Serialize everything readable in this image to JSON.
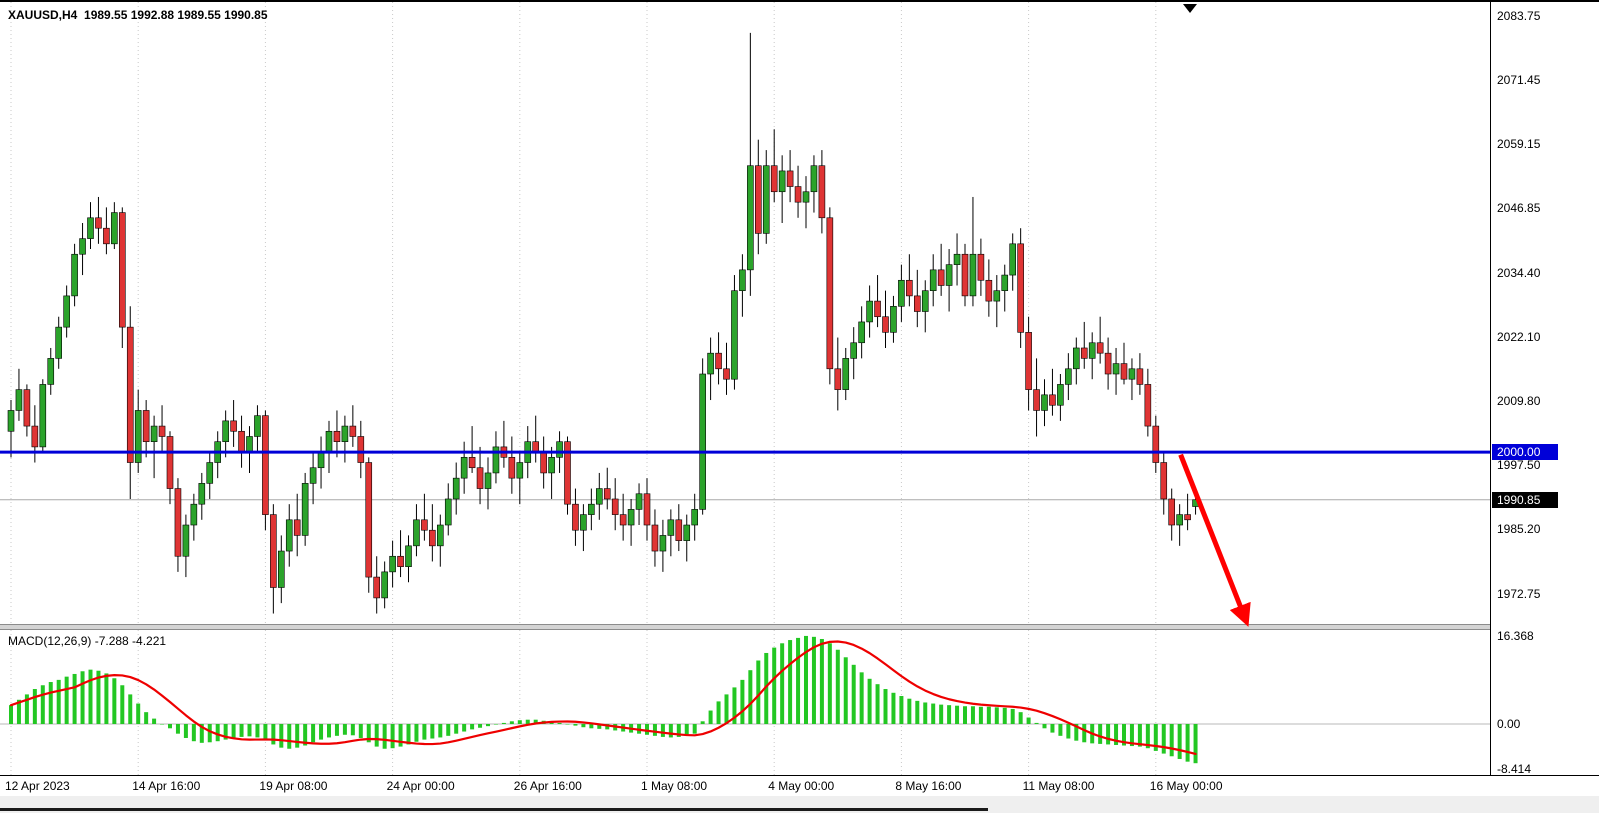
{
  "header": {
    "symbol_info": "XAUUSD,H4  1989.55 1992.88 1989.55 1990.85"
  },
  "indicator": {
    "label": "MACD(12,26,9) -7.288 -4.221"
  },
  "price_axis": {
    "ticks": [
      {
        "label": "2083.75",
        "value": 2083.75
      },
      {
        "label": "2071.45",
        "value": 2071.45
      },
      {
        "label": "2059.15",
        "value": 2059.15
      },
      {
        "label": "2046.85",
        "value": 2046.85
      },
      {
        "label": "2034.40",
        "value": 2034.4
      },
      {
        "label": "2022.10",
        "value": 2022.1
      },
      {
        "label": "2009.80",
        "value": 2009.8
      },
      {
        "label": "1997.50",
        "value": 1997.5
      },
      {
        "label": "1985.20",
        "value": 1985.2
      },
      {
        "label": "1972.75",
        "value": 1972.75
      }
    ],
    "line_label": {
      "label": "2000.00",
      "value": 2000.0
    },
    "current_label": {
      "label": "1990.85",
      "value": 1990.85
    }
  },
  "time_axis": {
    "ticks": [
      {
        "label": "12 Apr 2023",
        "bar": 0
      },
      {
        "label": "14 Apr 16:00",
        "bar": 16
      },
      {
        "label": "19 Apr 08:00",
        "bar": 32
      },
      {
        "label": "24 Apr 00:00",
        "bar": 48
      },
      {
        "label": "26 Apr 16:00",
        "bar": 64
      },
      {
        "label": "1 May 08:00",
        "bar": 80
      },
      {
        "label": "4 May 00:00",
        "bar": 96
      },
      {
        "label": "8 May 16:00",
        "bar": 112
      },
      {
        "label": "11 May 08:00",
        "bar": 128
      },
      {
        "label": "16 May 00:00",
        "bar": 144
      }
    ]
  },
  "macd_axis": {
    "ticks": [
      {
        "label": "16.368",
        "value": 16.368
      },
      {
        "label": "0.00",
        "value": 0
      },
      {
        "label": "-8.414",
        "value": -8.414
      }
    ]
  },
  "colors": {
    "bull": "#2BA32B",
    "bear": "#DF3434",
    "wick": "#000000",
    "histogram": "#23C723",
    "signal": "#EE0000",
    "hline": "#0000D8",
    "grid": "#C9C9C9",
    "arrow": "#FF0000",
    "current_line": "#A8A8A8",
    "hline_label_bg": "#0000D8",
    "current_label_bg": "#000000"
  },
  "chart_data": {
    "type": "candlestick",
    "title": "XAUUSD H4 with MACD(12,26,9)",
    "symbol": "XAUUSD",
    "timeframe": "H4",
    "main_ylim": [
      1966.99,
      2086.44
    ],
    "macd_ylim": [
      -9.48,
      17.47
    ],
    "horizontal_line_price": 2000.0,
    "current_price": 1990.85,
    "macd_signal_period": 9,
    "ohlc": [
      [
        2004,
        2010,
        1999,
        2008
      ],
      [
        2008,
        2016,
        2006,
        2012
      ],
      [
        2012,
        2013,
        2003,
        2005
      ],
      [
        2005,
        2009,
        1998,
        2001
      ],
      [
        2001,
        2014,
        2000,
        2013
      ],
      [
        2013,
        2020,
        2011,
        2018
      ],
      [
        2018,
        2026,
        2016,
        2024
      ],
      [
        2024,
        2032,
        2022,
        2030
      ],
      [
        2030,
        2040,
        2028,
        2038
      ],
      [
        2038,
        2044,
        2034,
        2041
      ],
      [
        2041,
        2048,
        2039,
        2045
      ],
      [
        2045,
        2049,
        2040,
        2043
      ],
      [
        2043,
        2047,
        2038,
        2040
      ],
      [
        2040,
        2048,
        2039,
        2046
      ],
      [
        2046,
        2047,
        2020,
        2024
      ],
      [
        2024,
        2028,
        1991,
        1998
      ],
      [
        1998,
        2012,
        1996,
        2008
      ],
      [
        2008,
        2010,
        1999,
        2002
      ],
      [
        2002,
        2007,
        1995,
        2005
      ],
      [
        2005,
        2009,
        2000,
        2003
      ],
      [
        2003,
        2004,
        1990,
        1993
      ],
      [
        1993,
        1995,
        1977,
        1980
      ],
      [
        1980,
        1988,
        1976,
        1986
      ],
      [
        1986,
        1992,
        1983,
        1990
      ],
      [
        1990,
        1996,
        1987,
        1994
      ],
      [
        1994,
        2000,
        1991,
        1998
      ],
      [
        1998,
        2004,
        1995,
        2002
      ],
      [
        2002,
        2008,
        1999,
        2006
      ],
      [
        2006,
        2010,
        2001,
        2004
      ],
      [
        2004,
        2007,
        1997,
        2000
      ],
      [
        2000,
        2005,
        1996,
        2003
      ],
      [
        2003,
        2009,
        2000,
        2007
      ],
      [
        2007,
        2008,
        1985,
        1988
      ],
      [
        1988,
        1990,
        1969,
        1974
      ],
      [
        1974,
        1984,
        1971,
        1981
      ],
      [
        1981,
        1990,
        1978,
        1987
      ],
      [
        1987,
        1992,
        1980,
        1984
      ],
      [
        1984,
        1996,
        1982,
        1994
      ],
      [
        1994,
        2000,
        1990,
        1997
      ],
      [
        1997,
        2003,
        1993,
        2000
      ],
      [
        2000,
        2006,
        1996,
        2004
      ],
      [
        2004,
        2008,
        1999,
        2002
      ],
      [
        2002,
        2007,
        1998,
        2005
      ],
      [
        2005,
        2009,
        2001,
        2003
      ],
      [
        2003,
        2006,
        1995,
        1998
      ],
      [
        1998,
        1999,
        1973,
        1976
      ],
      [
        1976,
        1980,
        1969,
        1972
      ],
      [
        1972,
        1979,
        1970,
        1977
      ],
      [
        1977,
        1983,
        1974,
        1980
      ],
      [
        1980,
        1985,
        1976,
        1978
      ],
      [
        1978,
        1984,
        1975,
        1982
      ],
      [
        1982,
        1990,
        1980,
        1987
      ],
      [
        1987,
        1992,
        1983,
        1985
      ],
      [
        1985,
        1990,
        1979,
        1982
      ],
      [
        1982,
        1988,
        1978,
        1986
      ],
      [
        1986,
        1994,
        1984,
        1991
      ],
      [
        1991,
        1998,
        1988,
        1995
      ],
      [
        1995,
        2002,
        1992,
        1999
      ],
      [
        1999,
        2005,
        1996,
        1997
      ],
      [
        1997,
        2001,
        1990,
        1993
      ],
      [
        1993,
        1999,
        1989,
        1996
      ],
      [
        1996,
        2004,
        1994,
        2001
      ],
      [
        2001,
        2006,
        1997,
        1999
      ],
      [
        1999,
        2003,
        1992,
        1995
      ],
      [
        1995,
        2000,
        1990,
        1998
      ],
      [
        1998,
        2005,
        1995,
        2002
      ],
      [
        2002,
        2007,
        1998,
        2000
      ],
      [
        2000,
        2003,
        1993,
        1996
      ],
      [
        1996,
        2001,
        1991,
        1999
      ],
      [
        1999,
        2004,
        1996,
        2002
      ],
      [
        2002,
        2003,
        1988,
        1990
      ],
      [
        1990,
        1993,
        1982,
        1985
      ],
      [
        1985,
        1990,
        1981,
        1988
      ],
      [
        1988,
        1993,
        1985,
        1990
      ],
      [
        1990,
        1996,
        1987,
        1993
      ],
      [
        1993,
        1997,
        1989,
        1991
      ],
      [
        1991,
        1995,
        1985,
        1988
      ],
      [
        1988,
        1992,
        1983,
        1986
      ],
      [
        1986,
        1991,
        1982,
        1989
      ],
      [
        1989,
        1994,
        1986,
        1992
      ],
      [
        1992,
        1995,
        1983,
        1986
      ],
      [
        1986,
        1989,
        1978,
        1981
      ],
      [
        1981,
        1987,
        1977,
        1984
      ],
      [
        1984,
        1989,
        1980,
        1987
      ],
      [
        1987,
        1990,
        1981,
        1983
      ],
      [
        1983,
        1988,
        1979,
        1986
      ],
      [
        1986,
        1992,
        1983,
        1989
      ],
      [
        1989,
        2018,
        1988,
        2015
      ],
      [
        2015,
        2022,
        2010,
        2019
      ],
      [
        2019,
        2023,
        2013,
        2016
      ],
      [
        2016,
        2021,
        2011,
        2014
      ],
      [
        2014,
        2034,
        2012,
        2031
      ],
      [
        2031,
        2038,
        2026,
        2035
      ],
      [
        2035,
        2080.5,
        2030,
        2055
      ],
      [
        2055,
        2060,
        2038,
        2042
      ],
      [
        2042,
        2058,
        2040,
        2055
      ],
      [
        2055,
        2062,
        2048,
        2050
      ],
      [
        2050,
        2057,
        2044,
        2054
      ],
      [
        2054,
        2058,
        2048,
        2051
      ],
      [
        2051,
        2055,
        2045,
        2048
      ],
      [
        2048,
        2053,
        2043,
        2050
      ],
      [
        2050,
        2057,
        2046,
        2055
      ],
      [
        2055,
        2058,
        2042,
        2045
      ],
      [
        2045,
        2047,
        2013,
        2016
      ],
      [
        2016,
        2022,
        2008,
        2012
      ],
      [
        2012,
        2020,
        2010,
        2018
      ],
      [
        2018,
        2024,
        2014,
        2021
      ],
      [
        2021,
        2028,
        2018,
        2025
      ],
      [
        2025,
        2032,
        2022,
        2029
      ],
      [
        2029,
        2034,
        2024,
        2026
      ],
      [
        2026,
        2031,
        2020,
        2023
      ],
      [
        2023,
        2030,
        2021,
        2028
      ],
      [
        2028,
        2036,
        2025,
        2033
      ],
      [
        2033,
        2038,
        2028,
        2030
      ],
      [
        2030,
        2035,
        2024,
        2027
      ],
      [
        2027,
        2033,
        2023,
        2031
      ],
      [
        2031,
        2038,
        2028,
        2035
      ],
      [
        2035,
        2040,
        2030,
        2032
      ],
      [
        2032,
        2039,
        2027,
        2036
      ],
      [
        2036,
        2042,
        2032,
        2038
      ],
      [
        2038,
        2040,
        2028,
        2030
      ],
      [
        2030,
        2049,
        2028,
        2038
      ],
      [
        2038,
        2041,
        2030,
        2033
      ],
      [
        2033,
        2037,
        2026,
        2029
      ],
      [
        2029,
        2034,
        2024,
        2031
      ],
      [
        2031,
        2036,
        2027,
        2034
      ],
      [
        2034,
        2042,
        2031,
        2040
      ],
      [
        2040,
        2043,
        2020,
        2023
      ],
      [
        2023,
        2026,
        2008,
        2012
      ],
      [
        2012,
        2018,
        2003,
        2008
      ],
      [
        2008,
        2014,
        2005,
        2011
      ],
      [
        2011,
        2016,
        2007,
        2009
      ],
      [
        2009,
        2015,
        2006,
        2013
      ],
      [
        2013,
        2019,
        2010,
        2016
      ],
      [
        2016,
        2022,
        2013,
        2020
      ],
      [
        2020,
        2025,
        2016,
        2018
      ],
      [
        2018,
        2023,
        2014,
        2021
      ],
      [
        2021,
        2026,
        2017,
        2019
      ],
      [
        2019,
        2022,
        2012,
        2015
      ],
      [
        2015,
        2020,
        2011,
        2017
      ],
      [
        2017,
        2021,
        2013,
        2014
      ],
      [
        2014,
        2018,
        2010,
        2016
      ],
      [
        2016,
        2019,
        2011,
        2013
      ],
      [
        2013,
        2016,
        2003,
        2005
      ],
      [
        2005,
        2007,
        1996,
        1998
      ],
      [
        1998,
        2000,
        1988,
        1991
      ],
      [
        1991,
        1993,
        1983,
        1986
      ],
      [
        1986,
        1990,
        1982,
        1988
      ],
      [
        1988,
        1992,
        1985,
        1987
      ],
      [
        1989.55,
        1992.88,
        1988,
        1990.85
      ]
    ],
    "macd_histogram": [
      3.5,
      4.5,
      5.5,
      6.5,
      7.2,
      7.8,
      8.2,
      8.8,
      9.3,
      9.8,
      10.1,
      9.9,
      9.4,
      8.5,
      7.2,
      5.5,
      3.8,
      2.2,
      1.0,
      0.0,
      -0.8,
      -1.8,
      -2.6,
      -3.2,
      -3.5,
      -3.4,
      -3.2,
      -2.9,
      -2.6,
      -2.4,
      -2.3,
      -2.5,
      -3.0,
      -3.8,
      -4.4,
      -4.6,
      -4.4,
      -4.0,
      -3.4,
      -2.9,
      -2.5,
      -2.2,
      -2.0,
      -2.1,
      -2.6,
      -3.4,
      -4.2,
      -4.6,
      -4.5,
      -4.2,
      -3.8,
      -3.3,
      -2.9,
      -2.7,
      -2.5,
      -2.2,
      -1.8,
      -1.4,
      -1.0,
      -0.7,
      -0.4,
      -0.1,
      0.2,
      0.5,
      0.7,
      0.8,
      0.8,
      0.6,
      0.4,
      0.2,
      0.0,
      -0.3,
      -0.6,
      -0.8,
      -0.9,
      -1.0,
      -1.2,
      -1.4,
      -1.6,
      -1.8,
      -2.0,
      -2.2,
      -2.4,
      -2.5,
      -2.4,
      -2.2,
      -1.8,
      0.5,
      2.5,
      4.2,
      5.5,
      6.8,
      8.2,
      10.0,
      11.8,
      13.2,
      14.2,
      15.0,
      15.6,
      16.0,
      16.368,
      16.2,
      15.8,
      15.0,
      13.8,
      12.4,
      11.0,
      9.6,
      8.4,
      7.4,
      6.5,
      5.8,
      5.2,
      4.7,
      4.3,
      4.0,
      3.8,
      3.6,
      3.5,
      3.4,
      3.3,
      3.3,
      3.2,
      3.2,
      3.1,
      3.0,
      2.8,
      2.2,
      1.2,
      0.2,
      -0.8,
      -1.6,
      -2.2,
      -2.7,
      -3.1,
      -3.4,
      -3.6,
      -3.7,
      -3.8,
      -3.9,
      -4.0,
      -4.1,
      -4.2,
      -4.5,
      -5.0,
      -5.5,
      -6.0,
      -6.5,
      -7.0,
      -7.288
    ],
    "annotations": [
      {
        "type": "arrow",
        "direction": "down",
        "color": "#FF0000",
        "from": {
          "bar": 147.5,
          "price": 1999.5
        },
        "to": {
          "bar": 155.5,
          "price": 1968.5
        }
      }
    ]
  }
}
